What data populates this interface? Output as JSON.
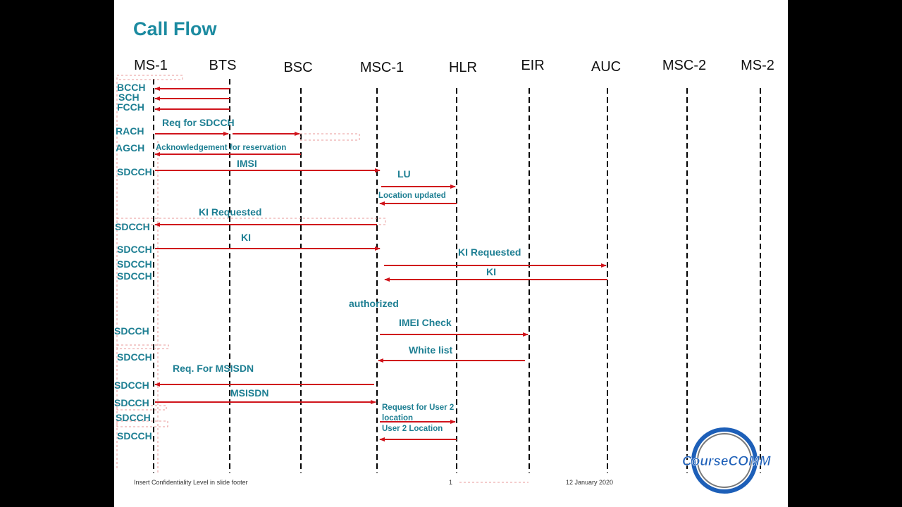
{
  "title": "Call Flow",
  "entities": [
    "MS-1",
    "BTS",
    "BSC",
    "MSC-1",
    "HLR",
    "EIR",
    "AUC",
    "MSC-2",
    "MS-2"
  ],
  "colors": {
    "title": "#1b8aa0",
    "label": "#1e7f93",
    "arrow": "#d0141c",
    "lifeline": "#000000"
  },
  "channels": [
    {
      "label": "BCCH"
    },
    {
      "label": "SCH"
    },
    {
      "label": "FCCH"
    },
    {
      "label": "RACH"
    },
    {
      "label": "AGCH"
    },
    {
      "label": "SDCCH"
    },
    {
      "label": "SDCCH"
    },
    {
      "label": "SDCCH"
    },
    {
      "label": "SDCCH"
    },
    {
      "label": "SDCCH"
    },
    {
      "label": "SDCCH"
    },
    {
      "label": "SDCCH"
    },
    {
      "label": "SDCCH"
    },
    {
      "label": "SDCCH"
    },
    {
      "label": "SDCCH"
    },
    {
      "label": "SDCCH"
    },
    {
      "label": "SDCCH"
    }
  ],
  "messages": [
    {
      "from": "BTS",
      "to": "MS-1",
      "label": ""
    },
    {
      "from": "BTS",
      "to": "MS-1",
      "label": ""
    },
    {
      "from": "BTS",
      "to": "MS-1",
      "label": ""
    },
    {
      "from": "MS-1",
      "to": "BTS",
      "label": "Req for SDCCH"
    },
    {
      "from": "BTS",
      "to": "BSC",
      "label": ""
    },
    {
      "from": "BSC",
      "to": "MS-1",
      "label": "Acknowledgement for reservation"
    },
    {
      "from": "MS-1",
      "to": "MSC-1",
      "label": "IMSI"
    },
    {
      "from": "MSC-1",
      "to": "HLR",
      "label": "LU"
    },
    {
      "from": "HLR",
      "to": "MSC-1",
      "label": "Location updated"
    },
    {
      "from": "MSC-1",
      "to": "MS-1",
      "label": "KI Requested"
    },
    {
      "from": "MS-1",
      "to": "MSC-1",
      "label": "KI"
    },
    {
      "from": "MSC-1",
      "to": "AUC",
      "label": "KI Requested"
    },
    {
      "from": "AUC",
      "to": "MSC-1",
      "label": "KI"
    },
    {
      "from": "MSC-1",
      "to": "EIR",
      "label": "IMEI Check"
    },
    {
      "from": "EIR",
      "to": "MSC-1",
      "label": "White list"
    },
    {
      "from": "MSC-1",
      "to": "MS-1",
      "label": "Req. For MSISDN"
    },
    {
      "from": "MS-1",
      "to": "MSC-1",
      "label": "MSISDN"
    },
    {
      "from": "MSC-1",
      "to": "HLR",
      "label": "Request for User 2 location"
    },
    {
      "from": "HLR",
      "to": "MSC-1",
      "label": "User 2 Location"
    }
  ],
  "notes": [
    {
      "label": "authorized"
    }
  ],
  "footer": {
    "left": "Insert Confidentiality Level in slide footer",
    "page": "1",
    "date": "12 January 2020"
  },
  "logo": {
    "text": "CourseCOMM",
    "icon": "coursecomm-logo-icon"
  }
}
